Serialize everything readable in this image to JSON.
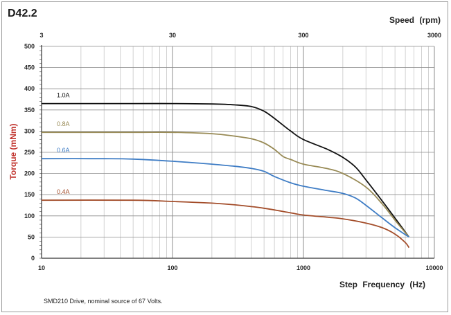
{
  "chart_data": {
    "type": "line",
    "title": "D42.2",
    "xlabel": "Step Frequency (Hz)",
    "ylabel": "Torque (mNm)",
    "x_scale": "log",
    "xlim": [
      10,
      10000
    ],
    "ylim": [
      0,
      500
    ],
    "x_ticks": [
      "10",
      "100",
      "1000",
      "10000"
    ],
    "y_ticks": [
      "0",
      "50",
      "100",
      "150",
      "200",
      "250",
      "300",
      "350",
      "400",
      "450",
      "500"
    ],
    "secondary_x": {
      "label": "Speed (rpm)",
      "scale": "log",
      "ticks": [
        "3",
        "30",
        "300",
        "3000"
      ]
    },
    "grid": true,
    "legend": "inline labels",
    "footnote": "SMD210  Drive, nominal source of 67 Volts.",
    "series": [
      {
        "name": "1.0A",
        "color": "#111111",
        "points": [
          [
            10,
            365
          ],
          [
            50,
            365
          ],
          [
            100,
            365
          ],
          [
            200,
            364
          ],
          [
            300,
            362
          ],
          [
            400,
            358
          ],
          [
            500,
            347
          ],
          [
            600,
            330
          ],
          [
            800,
            300
          ],
          [
            1000,
            280
          ],
          [
            1500,
            258
          ],
          [
            2000,
            238
          ],
          [
            2500,
            215
          ],
          [
            3000,
            185
          ],
          [
            4000,
            135
          ],
          [
            5000,
            95
          ],
          [
            6400,
            50
          ]
        ]
      },
      {
        "name": "0.8A",
        "color": "#988a55",
        "points": [
          [
            10,
            297
          ],
          [
            50,
            297
          ],
          [
            100,
            297
          ],
          [
            200,
            294
          ],
          [
            300,
            288
          ],
          [
            400,
            282
          ],
          [
            500,
            272
          ],
          [
            600,
            257
          ],
          [
            700,
            240
          ],
          [
            800,
            233
          ],
          [
            1000,
            222
          ],
          [
            1500,
            212
          ],
          [
            2000,
            200
          ],
          [
            3000,
            168
          ],
          [
            4000,
            128
          ],
          [
            5000,
            90
          ],
          [
            6400,
            50
          ]
        ]
      },
      {
        "name": "0.6A",
        "color": "#3f7dc5",
        "points": [
          [
            10,
            235
          ],
          [
            30,
            235
          ],
          [
            50,
            234
          ],
          [
            100,
            229
          ],
          [
            200,
            222
          ],
          [
            300,
            217
          ],
          [
            400,
            212
          ],
          [
            500,
            205
          ],
          [
            600,
            193
          ],
          [
            800,
            178
          ],
          [
            1000,
            170
          ],
          [
            1500,
            160
          ],
          [
            2000,
            153
          ],
          [
            2500,
            142
          ],
          [
            3000,
            125
          ],
          [
            4000,
            95
          ],
          [
            5000,
            72
          ],
          [
            6400,
            50
          ]
        ]
      },
      {
        "name": "0.4A",
        "color": "#a34d2a",
        "points": [
          [
            10,
            137
          ],
          [
            50,
            137
          ],
          [
            100,
            134
          ],
          [
            200,
            130
          ],
          [
            300,
            126
          ],
          [
            500,
            118
          ],
          [
            800,
            107
          ],
          [
            1000,
            102
          ],
          [
            1500,
            97
          ],
          [
            2000,
            93
          ],
          [
            3000,
            83
          ],
          [
            4000,
            72
          ],
          [
            5000,
            57
          ],
          [
            6000,
            37
          ],
          [
            6400,
            25
          ]
        ]
      }
    ]
  }
}
